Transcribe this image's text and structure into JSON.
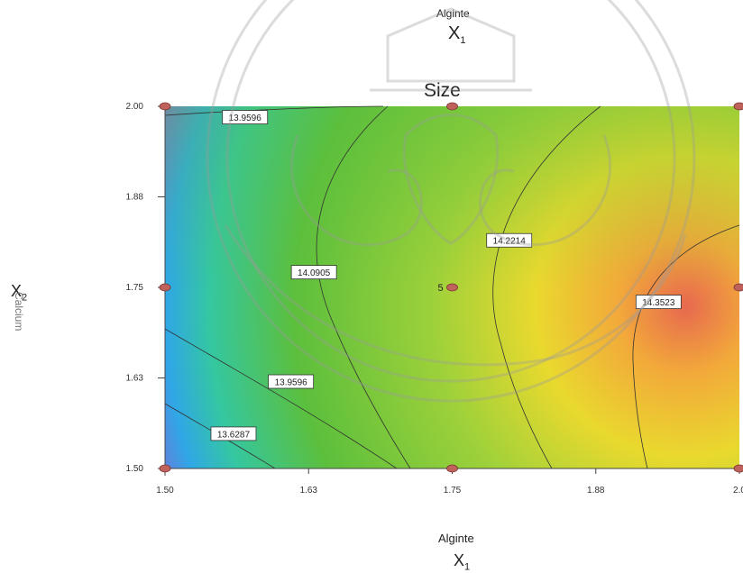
{
  "header": {
    "top_axis_name": "Alginte",
    "top_axis_symbol": "X",
    "top_axis_sub": "1"
  },
  "chart_data": {
    "type": "contour",
    "title": "Size",
    "xlabel": "Alginte",
    "x_symbol": "X",
    "x_sub": "1",
    "ylabel": "Calcium",
    "y_symbol": "X",
    "y_sub": "2",
    "xlim": [
      1.5,
      2.0
    ],
    "ylim": [
      1.5,
      2.0
    ],
    "x_ticks": [
      "1.50",
      "1.63",
      "1.75",
      "1.88",
      "2.0"
    ],
    "y_ticks": [
      "1.50",
      "1.63",
      "1.75",
      "1.88",
      "2.00"
    ],
    "x_tick_values": [
      1.5,
      1.625,
      1.75,
      1.875,
      2.0
    ],
    "y_tick_values": [
      1.5,
      1.625,
      1.75,
      1.875,
      2.0
    ],
    "contour_levels": [
      "13.6287",
      "13.9596",
      "14.0905",
      "14.2214",
      "14.3523"
    ],
    "contour_labels": [
      {
        "text": "13.9596",
        "x": 1.55,
        "y": 1.985
      },
      {
        "text": "14.0905",
        "x": 1.61,
        "y": 1.771
      },
      {
        "text": "14.2214",
        "x": 1.78,
        "y": 1.815
      },
      {
        "text": "14.3523",
        "x": 1.91,
        "y": 1.73
      },
      {
        "text": "13.9596",
        "x": 1.59,
        "y": 1.62
      },
      {
        "text": "13.6287",
        "x": 1.54,
        "y": 1.548
      }
    ],
    "design_points": [
      {
        "x": 1.5,
        "y": 1.5
      },
      {
        "x": 1.75,
        "y": 1.5
      },
      {
        "x": 2.0,
        "y": 1.5
      },
      {
        "x": 1.5,
        "y": 1.75
      },
      {
        "x": 1.75,
        "y": 1.75
      },
      {
        "x": 2.0,
        "y": 1.75
      },
      {
        "x": 1.5,
        "y": 2.0
      },
      {
        "x": 1.75,
        "y": 2.0
      },
      {
        "x": 2.0,
        "y": 2.0
      }
    ],
    "center_replicates": "5",
    "color_scale": [
      "#7b6fd6",
      "#2fa7e6",
      "#35c7a0",
      "#5cbf3c",
      "#9ed13a",
      "#e9d92e",
      "#f2a93a",
      "#e7694f"
    ]
  }
}
